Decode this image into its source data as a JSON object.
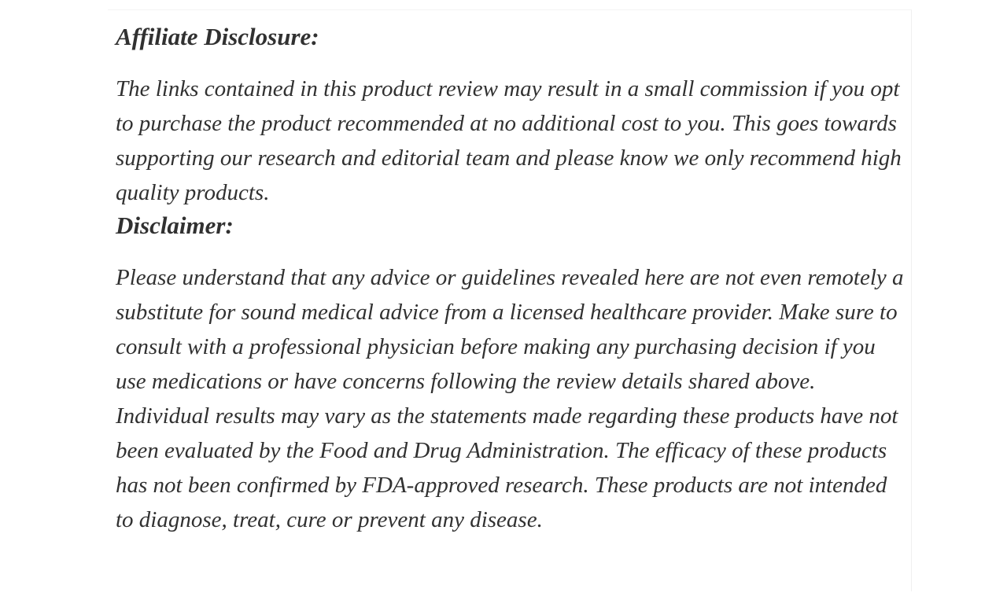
{
  "page": {
    "background_color": "#ffffff",
    "text_color": "#313131",
    "divider_color": "#f0f0f0"
  },
  "article": {
    "sections": [
      {
        "heading": "Affiliate Disclosure:",
        "paragraphs": [
          "The links contained in this product review may result in a small commission if you opt to purchase the product recommended at no additional cost to you. This goes towards supporting our research and editorial team and please know we only recommend high quality products."
        ]
      },
      {
        "heading": "Disclaimer:",
        "paragraphs": [
          "Please understand that any advice or guidelines revealed here are not even remotely a substitute for sound medical advice from a licensed healthcare provider. Make sure to consult with a professional physician before making any purchasing decision if you use medications or have concerns following the review details shared above. Individual results may vary as the statements made regarding these products have not been evaluated by the Food and Drug Administration. The efficacy of these products has not been confirmed by FDA-approved research. These products are not intended to diagnose, treat, cure or prevent any disease."
        ]
      }
    ]
  }
}
